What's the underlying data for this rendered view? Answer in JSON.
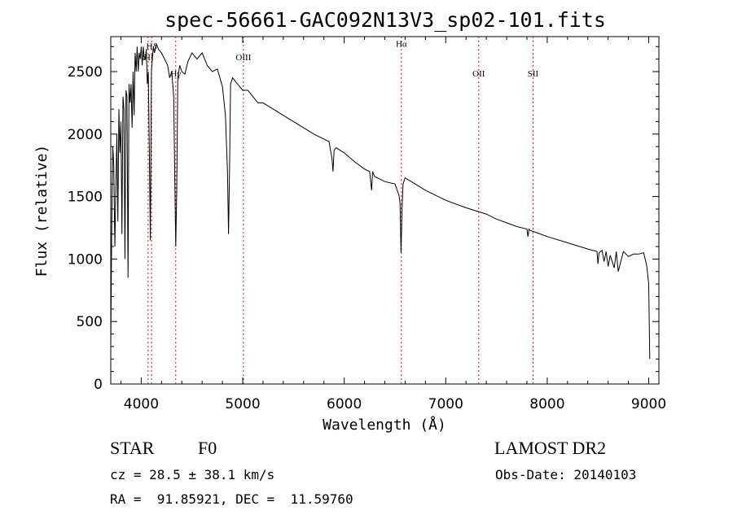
{
  "chart_data": {
    "type": "line",
    "title": "spec-56661-GAC092N13V3_sp02-101.fits",
    "xlabel": "Wavelength (Å)",
    "ylabel": "Flux (relative)",
    "xlim": [
      3700,
      9100
    ],
    "ylim": [
      0,
      2780
    ],
    "x_ticks": [
      4000,
      5000,
      6000,
      7000,
      8000,
      9000
    ],
    "y_ticks": [
      0,
      500,
      1000,
      1500,
      2000,
      2500
    ],
    "x_tick_labels": [
      "4000",
      "5000",
      "6000",
      "7000",
      "8000",
      "9000"
    ],
    "y_tick_labels": [
      "0",
      "500",
      "1000",
      "1500",
      "2000",
      "2500"
    ],
    "grid": false,
    "series": [
      {
        "color": "#000000",
        "x": [
          3700,
          3710,
          3720,
          3730,
          3740,
          3750,
          3760,
          3770,
          3780,
          3790,
          3800,
          3810,
          3820,
          3830,
          3840,
          3850,
          3860,
          3870,
          3880,
          3890,
          3900,
          3910,
          3920,
          3930,
          3940,
          3950,
          3960,
          3970,
          3980,
          3990,
          4000,
          4010,
          4020,
          4030,
          4040,
          4050,
          4060,
          4070,
          4080,
          4090,
          4100,
          4110,
          4120,
          4130,
          4150,
          4170,
          4200,
          4230,
          4260,
          4280,
          4300,
          4320,
          4330,
          4340,
          4350,
          4360,
          4380,
          4400,
          4430,
          4460,
          4500,
          4550,
          4600,
          4650,
          4700,
          4750,
          4800,
          4830,
          4850,
          4860,
          4870,
          4880,
          4900,
          4950,
          5000,
          5050,
          5100,
          5150,
          5200,
          5300,
          5400,
          5500,
          5600,
          5700,
          5800,
          5850,
          5880,
          5890,
          5900,
          5920,
          6000,
          6100,
          6200,
          6250,
          6270,
          6280,
          6300,
          6400,
          6500,
          6540,
          6550,
          6560,
          6570,
          6580,
          6600,
          6700,
          6800,
          7000,
          7200,
          7400,
          7500,
          7600,
          7700,
          7800,
          7810,
          7820,
          7830,
          7900,
          8000,
          8200,
          8400,
          8490,
          8500,
          8510,
          8540,
          8560,
          8580,
          8600,
          8620,
          8640,
          8660,
          8680,
          8700,
          8750,
          8800,
          8850,
          8900,
          8950,
          8980,
          9000,
          9010
        ],
        "y": [
          300,
          1250,
          1900,
          1750,
          1100,
          1550,
          2000,
          1300,
          2200,
          1850,
          2100,
          1200,
          2300,
          2200,
          1000,
          2350,
          2300,
          850,
          2400,
          2250,
          2400,
          2050,
          2500,
          2150,
          2650,
          2500,
          2700,
          2500,
          2650,
          2600,
          2700,
          2550,
          2700,
          2600,
          2600,
          2680,
          2400,
          2500,
          1850,
          1150,
          2500,
          2600,
          2700,
          2650,
          2720,
          2680,
          2650,
          2600,
          2550,
          2450,
          2500,
          2300,
          1700,
          1100,
          1550,
          2450,
          2550,
          2500,
          2480,
          2580,
          2650,
          2600,
          2650,
          2550,
          2500,
          2520,
          2380,
          2150,
          1700,
          1200,
          1700,
          2400,
          2450,
          2400,
          2350,
          2350,
          2300,
          2250,
          2250,
          2200,
          2150,
          2100,
          2050,
          2000,
          1960,
          1940,
          1800,
          1700,
          1870,
          1890,
          1850,
          1780,
          1720,
          1700,
          1550,
          1700,
          1660,
          1620,
          1600,
          1510,
          1450,
          1050,
          1420,
          1600,
          1650,
          1600,
          1550,
          1470,
          1410,
          1360,
          1320,
          1290,
          1260,
          1240,
          1180,
          1240,
          1230,
          1210,
          1180,
          1130,
          1080,
          1060,
          960,
          1050,
          1070,
          980,
          1060,
          940,
          1030,
          980,
          930,
          1060,
          900,
          1060,
          1020,
          1040,
          1040,
          1050,
          950,
          800,
          200
        ]
      }
    ],
    "lines": [
      {
        "label": "SII",
        "x": 4068,
        "label_y": 2590
      },
      {
        "label": "Hδ",
        "x": 4102,
        "label_y": 2680
      },
      {
        "label": "Hγ",
        "x": 4340,
        "label_y": 2460
      },
      {
        "label": "OIII",
        "x": 5007,
        "label_y": 2590
      },
      {
        "label": "Hα",
        "x": 6563,
        "label_y": 2700
      },
      {
        "label": "OII",
        "x": 7325,
        "label_y": 2460
      },
      {
        "label": "SII",
        "x": 7860,
        "label_y": 2460
      }
    ],
    "info": {
      "class_label": "STAR",
      "subclass": "F0",
      "survey": "LAMOST DR2",
      "cz": "cz = 28.5 ± 38.1 km/s",
      "obs_date": "Obs-Date: 20140103",
      "coords": "RA =  91.85921, DEC =  11.59760"
    }
  }
}
